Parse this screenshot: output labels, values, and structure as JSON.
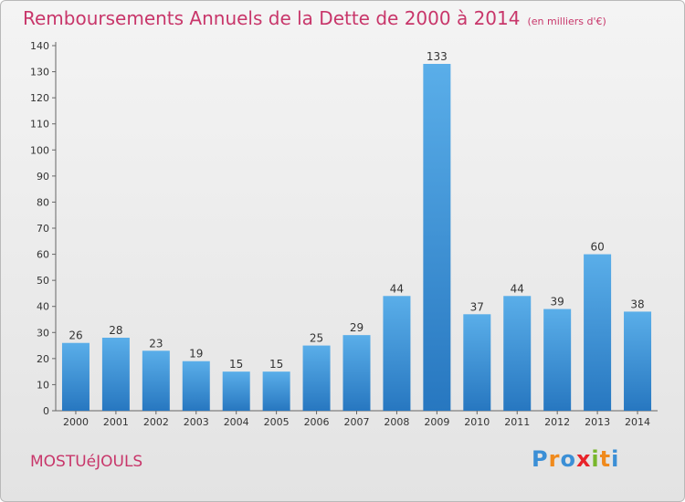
{
  "title": "Remboursements Annuels de la Dette de 2000 à 2014",
  "unit": "(en milliers d'€)",
  "town": "MOSTUéJOULS",
  "logo": {
    "letters": [
      "P",
      "r",
      "o",
      "x",
      "i",
      "t",
      "i"
    ],
    "colors": [
      "#3b8fd6",
      "#f08a1c",
      "#3b8fd6",
      "#e8232a",
      "#78b62b",
      "#f08a1c",
      "#3b8fd6"
    ]
  },
  "chart_data": {
    "type": "bar",
    "categories": [
      "2000",
      "2001",
      "2002",
      "2003",
      "2004",
      "2005",
      "2006",
      "2007",
      "2008",
      "2009",
      "2010",
      "2011",
      "2012",
      "2013",
      "2014"
    ],
    "values": [
      26,
      28,
      23,
      19,
      15,
      15,
      25,
      29,
      44,
      133,
      37,
      44,
      39,
      60,
      38
    ],
    "ylim": [
      0,
      140
    ],
    "yticks": [
      0,
      10,
      20,
      30,
      40,
      50,
      60,
      70,
      80,
      90,
      100,
      110,
      120,
      130,
      140
    ],
    "grid": false,
    "bar_color_top": "#5aaee9",
    "bar_color_bottom": "#2777c0"
  }
}
